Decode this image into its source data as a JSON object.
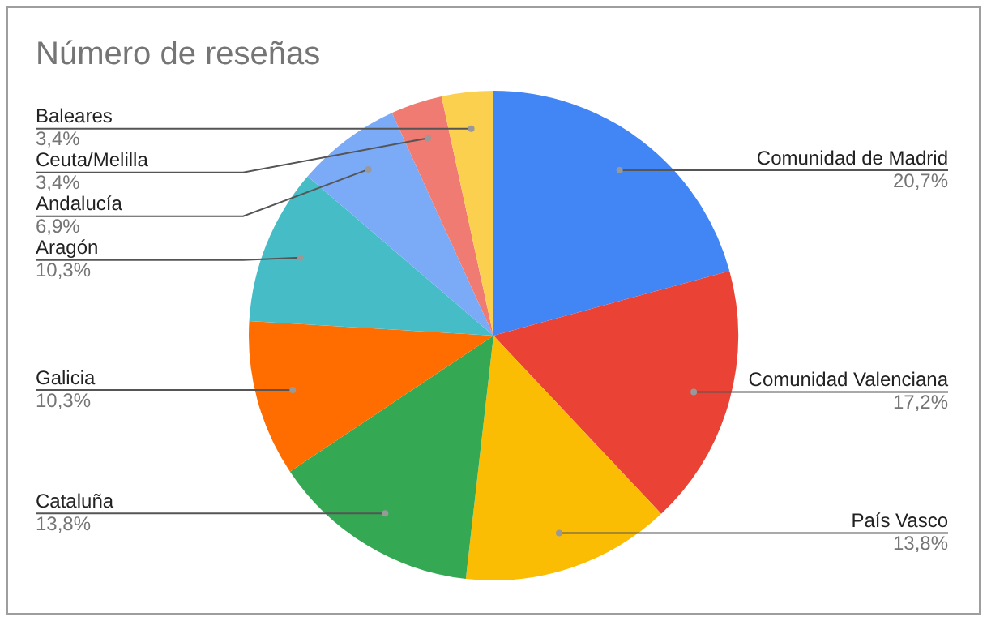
{
  "chart_data": {
    "type": "pie",
    "title": "Número de reseñas",
    "categories": [
      "Comunidad de Madrid",
      "Comunidad Valenciana",
      "País Vasco",
      "Cataluña",
      "Galicia",
      "Aragón",
      "Andalucía",
      "Ceuta/Melilla",
      "Baleares"
    ],
    "values": [
      20.7,
      17.2,
      13.8,
      13.8,
      10.3,
      10.3,
      6.9,
      3.4,
      3.4
    ],
    "value_labels": [
      "20,7%",
      "17,2%",
      "13,8%",
      "13,8%",
      "10,3%",
      "10,3%",
      "6,9%",
      "3,4%",
      "3,4%"
    ],
    "colors": [
      "#4285f4",
      "#ea4335",
      "#fbbc04",
      "#34a853",
      "#ff6d01",
      "#46bdc6",
      "#7baaf7",
      "#f07b72",
      "#fcd04f"
    ],
    "legend": false
  }
}
